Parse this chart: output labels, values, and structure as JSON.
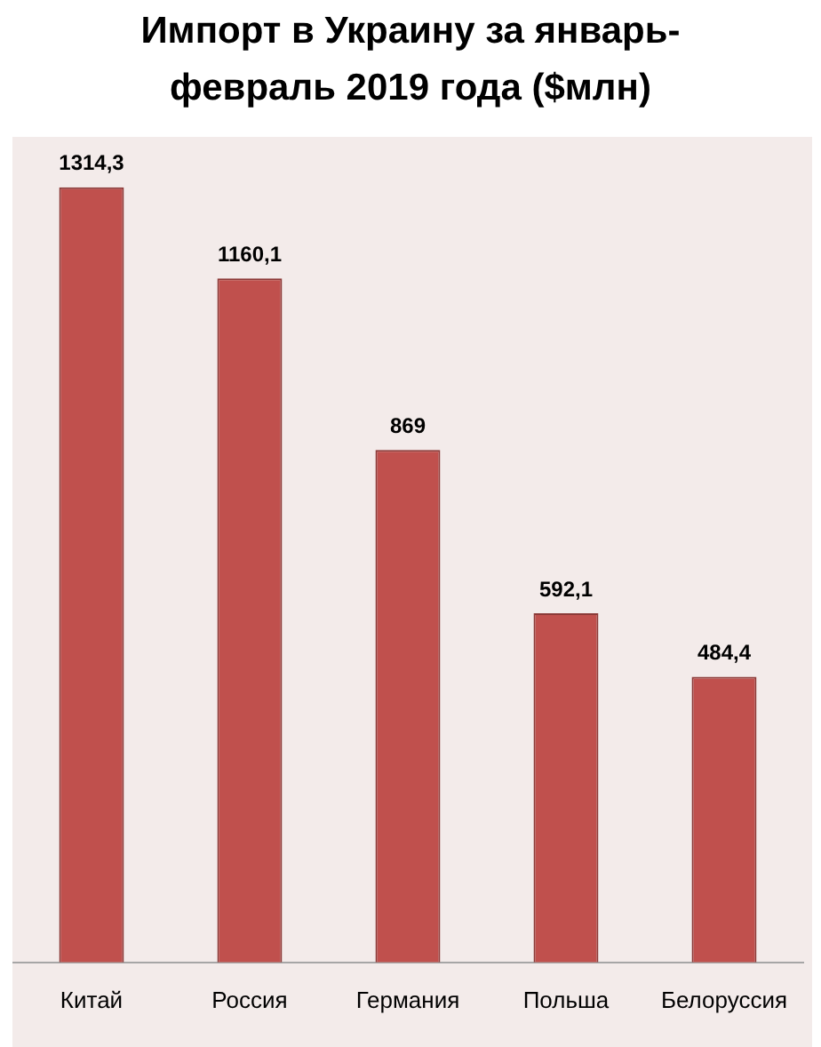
{
  "chart_data": {
    "type": "bar",
    "title": "Импорт в Украину за январь-февраль 2019 года ($млн)",
    "categories": [
      "Китай",
      "Россия",
      "Германия",
      "Польша",
      "Белоруссия"
    ],
    "values": [
      1314.3,
      1160.1,
      869,
      592.1,
      484.4
    ],
    "value_labels": [
      "1314,3",
      "1160,1",
      "869",
      "592,1",
      "484,4"
    ],
    "color": "#c0504d",
    "ylim": [
      0,
      1400
    ],
    "tick_labels": "x"
  }
}
